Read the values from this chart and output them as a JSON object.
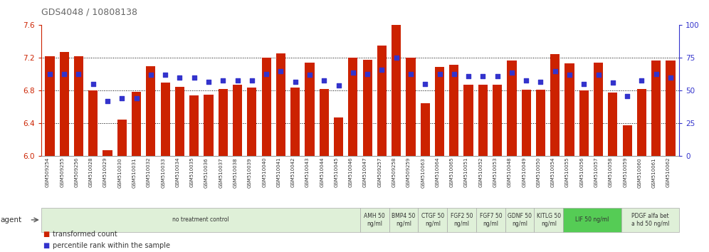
{
  "title": "GDS4048 / 10808138",
  "x_labels": [
    "GSM509254",
    "GSM509255",
    "GSM509256",
    "GSM510028",
    "GSM510029",
    "GSM510030",
    "GSM510031",
    "GSM510032",
    "GSM510033",
    "GSM510034",
    "GSM510035",
    "GSM510036",
    "GSM510037",
    "GSM510038",
    "GSM510039",
    "GSM510040",
    "GSM510041",
    "GSM510042",
    "GSM510043",
    "GSM510044",
    "GSM510045",
    "GSM510046",
    "GSM510047",
    "GSM509257",
    "GSM509258",
    "GSM509259",
    "GSM510063",
    "GSM510064",
    "GSM510065",
    "GSM510051",
    "GSM510052",
    "GSM510053",
    "GSM510048",
    "GSM510049",
    "GSM510050",
    "GSM510054",
    "GSM510055",
    "GSM510056",
    "GSM510057",
    "GSM510058",
    "GSM510059",
    "GSM510060",
    "GSM510061",
    "GSM510062"
  ],
  "bar_values": [
    7.22,
    7.27,
    7.22,
    6.8,
    6.07,
    6.45,
    6.79,
    7.1,
    6.9,
    6.85,
    6.74,
    6.75,
    6.82,
    6.87,
    6.84,
    7.2,
    7.26,
    6.84,
    7.14,
    6.82,
    6.47,
    7.2,
    7.18,
    7.35,
    7.6,
    7.2,
    6.65,
    7.09,
    7.12,
    6.87,
    6.87,
    6.87,
    7.17,
    6.81,
    6.81,
    7.25,
    7.13,
    6.8,
    7.14,
    6.78,
    6.38,
    6.82,
    7.17,
    7.17
  ],
  "percentile_values": [
    63,
    63,
    63,
    55,
    42,
    44,
    44,
    62,
    62,
    60,
    60,
    57,
    58,
    58,
    58,
    63,
    65,
    57,
    62,
    58,
    54,
    64,
    63,
    66,
    75,
    63,
    55,
    63,
    63,
    61,
    61,
    61,
    64,
    58,
    57,
    65,
    62,
    55,
    62,
    56,
    46,
    58,
    63,
    60
  ],
  "ylim_left": [
    6.0,
    7.6
  ],
  "ylim_right": [
    0,
    100
  ],
  "yticks_left": [
    6.0,
    6.4,
    6.8,
    7.2,
    7.6
  ],
  "yticks_right": [
    0,
    25,
    50,
    75,
    100
  ],
  "bar_color": "#cc2200",
  "dot_color": "#3333cc",
  "grid_color": "#000000",
  "agent_groups": [
    {
      "label": "no treatment control",
      "start": 0,
      "end": 22,
      "color": "#dff0d8",
      "bright": false
    },
    {
      "label": "AMH 50\nng/ml",
      "start": 22,
      "end": 24,
      "color": "#dff0d8",
      "bright": false
    },
    {
      "label": "BMP4 50\nng/ml",
      "start": 24,
      "end": 26,
      "color": "#dff0d8",
      "bright": false
    },
    {
      "label": "CTGF 50\nng/ml",
      "start": 26,
      "end": 28,
      "color": "#dff0d8",
      "bright": false
    },
    {
      "label": "FGF2 50\nng/ml",
      "start": 28,
      "end": 30,
      "color": "#dff0d8",
      "bright": false
    },
    {
      "label": "FGF7 50\nng/ml",
      "start": 30,
      "end": 32,
      "color": "#dff0d8",
      "bright": false
    },
    {
      "label": "GDNF 50\nng/ml",
      "start": 32,
      "end": 34,
      "color": "#dff0d8",
      "bright": false
    },
    {
      "label": "KITLG 50\nng/ml",
      "start": 34,
      "end": 36,
      "color": "#dff0d8",
      "bright": false
    },
    {
      "label": "LIF 50 ng/ml",
      "start": 36,
      "end": 40,
      "color": "#55cc55",
      "bright": true
    },
    {
      "label": "PDGF alfa bet\na hd 50 ng/ml",
      "start": 40,
      "end": 44,
      "color": "#dff0d8",
      "bright": false
    }
  ],
  "left_axis_color": "#cc2200",
  "right_axis_color": "#3333cc",
  "fig_width": 9.96,
  "fig_height": 3.54,
  "dpi": 100
}
